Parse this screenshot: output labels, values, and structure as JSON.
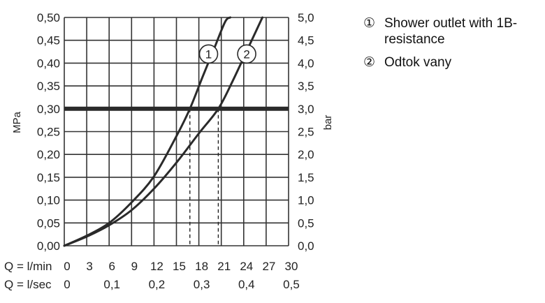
{
  "chart_data": {
    "type": "line",
    "left_axis": {
      "label": "MPa",
      "ticks": [
        "0,00",
        "0,05",
        "0,10",
        "0,15",
        "0,20",
        "0,25",
        "0,30",
        "0,35",
        "0,40",
        "0,45",
        "0,50"
      ],
      "ylim": [
        0,
        0.5
      ]
    },
    "right_axis": {
      "label": "bar",
      "ticks": [
        "0,0",
        "0,5",
        "1,0",
        "1,5",
        "2,0",
        "2,5",
        "3,0",
        "3,5",
        "4,0",
        "4,5",
        "5,0"
      ],
      "ylim": [
        0,
        5
      ]
    },
    "x_axis_lmin": {
      "label": "Q = l/min",
      "ticks": [
        "0",
        "3",
        "6",
        "9",
        "12",
        "15",
        "18",
        "21",
        "24",
        "27",
        "30"
      ],
      "xlim": [
        0,
        30
      ]
    },
    "x_axis_lsec": {
      "label": "Q = l/sec",
      "ticks": [
        "0",
        "0,1",
        "0,2",
        "0,3",
        "0,4",
        "0,5"
      ]
    },
    "grid": true,
    "reference_line": {
      "y_mpa": 0.3
    },
    "series": [
      {
        "marker": "1",
        "x": [
          0,
          3,
          6,
          9,
          12,
          15,
          16.8,
          18.5,
          20,
          21.5,
          22.2
        ],
        "y": [
          0,
          0.022,
          0.05,
          0.095,
          0.152,
          0.24,
          0.3,
          0.37,
          0.43,
          0.49,
          0.5
        ]
      },
      {
        "marker": "2",
        "x": [
          0,
          3,
          6,
          9,
          12,
          15,
          18,
          20.6,
          22.5,
          24.5,
          26.5
        ],
        "y": [
          0,
          0.02,
          0.045,
          0.078,
          0.125,
          0.182,
          0.246,
          0.3,
          0.36,
          0.43,
          0.5
        ]
      }
    ],
    "dashed_drops": [
      16.8,
      20.6
    ]
  },
  "legend": [
    {
      "marker": "①",
      "text": "Shower outlet with 1B-resistance"
    },
    {
      "marker": "②",
      "text": "Odtok vany"
    }
  ]
}
